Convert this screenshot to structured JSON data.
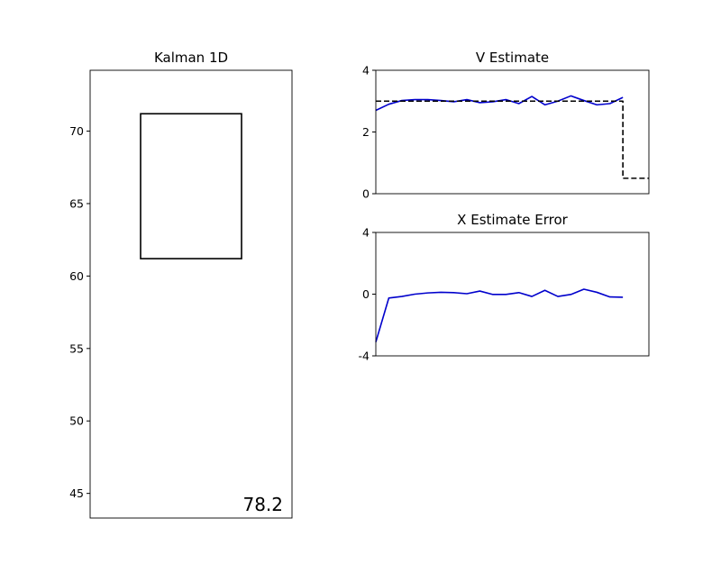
{
  "chart_data": [
    {
      "type": "line",
      "title": "Kalman 1D",
      "xlabel": "",
      "ylabel": "",
      "ylim": [
        43.3,
        74.2
      ],
      "y_ticks": [
        45,
        50,
        55,
        60,
        65,
        70
      ],
      "x_ticks": [],
      "shapes": [
        {
          "kind": "rectangle",
          "x_center": 0.5,
          "x_width": 0.5,
          "y_bottom": 61.2,
          "y_top": 71.2,
          "color": "#000000"
        }
      ],
      "annotation": "78.2"
    },
    {
      "type": "line",
      "title": "V Estimate",
      "xlabel": "",
      "ylabel": "",
      "xlim": [
        0,
        21
      ],
      "ylim": [
        0,
        4
      ],
      "y_ticks": [
        0,
        2,
        4
      ],
      "x_ticks": [],
      "series": [
        {
          "color": "#0000cc",
          "style": "solid",
          "x": [
            0,
            1,
            2,
            3,
            4,
            5,
            6,
            7,
            8,
            9,
            10,
            11,
            12,
            13,
            14,
            15,
            16,
            17,
            18,
            19
          ],
          "values": [
            2.7,
            2.9,
            3.02,
            3.05,
            3.05,
            3.02,
            2.98,
            3.05,
            2.95,
            2.98,
            3.05,
            2.92,
            3.15,
            2.88,
            3.0,
            3.17,
            3.02,
            2.88,
            2.92,
            3.12
          ]
        },
        {
          "color": "#000000",
          "style": "dashed",
          "x": [
            0,
            19,
            19,
            21
          ],
          "values": [
            3.0,
            3.0,
            0.5,
            0.5
          ]
        }
      ]
    },
    {
      "type": "line",
      "title": "X Estimate Error",
      "xlabel": "",
      "ylabel": "",
      "xlim": [
        0,
        21
      ],
      "ylim": [
        -4,
        4
      ],
      "y_ticks": [
        -4,
        0,
        4
      ],
      "x_ticks": [],
      "series": [
        {
          "color": "#0000cc",
          "style": "solid",
          "x": [
            0,
            1,
            2,
            3,
            4,
            5,
            6,
            7,
            8,
            9,
            10,
            11,
            12,
            13,
            14,
            15,
            16,
            17,
            18,
            19
          ],
          "values": [
            -3.1,
            -0.25,
            -0.15,
            0.0,
            0.08,
            0.12,
            0.1,
            0.03,
            0.2,
            -0.02,
            -0.02,
            0.1,
            -0.15,
            0.25,
            -0.15,
            -0.02,
            0.32,
            0.12,
            -0.18,
            -0.2
          ]
        }
      ]
    }
  ]
}
